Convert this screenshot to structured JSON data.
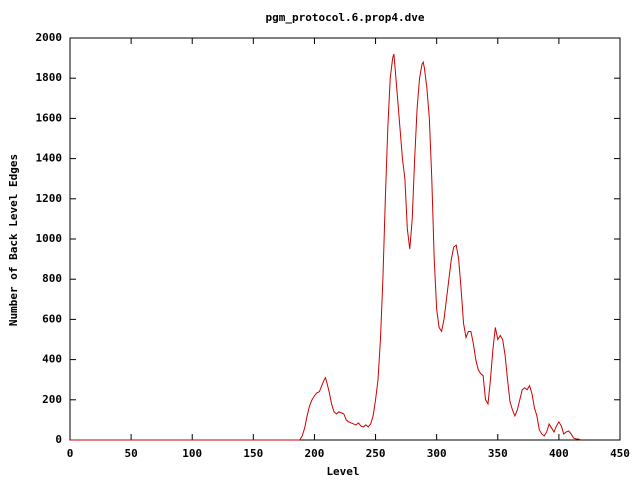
{
  "chart_data": {
    "type": "line",
    "title": "pgm_protocol.6.prop4.dve",
    "x_label": "Level",
    "y_label": "Number of Back Level Edges",
    "xlim": [
      0,
      450
    ],
    "xticks": [
      0,
      50,
      100,
      150,
      200,
      250,
      300,
      350,
      400,
      450
    ],
    "ylim": [
      0,
      2000
    ],
    "yticks": [
      0,
      200,
      400,
      600,
      800,
      1000,
      1200,
      1400,
      1600,
      1800,
      2000
    ],
    "series": [
      {
        "color": "#cc0000",
        "x": [
          0,
          188,
          190,
          192,
          194,
          196,
          198,
          200,
          202,
          204,
          206,
          208,
          209,
          210,
          212,
          214,
          216,
          218,
          220,
          222,
          224,
          226,
          228,
          230,
          232,
          234,
          236,
          238,
          240,
          242,
          244,
          246,
          248,
          250,
          252,
          254,
          256,
          258,
          260,
          262,
          264,
          265,
          266,
          268,
          270,
          272,
          274,
          276,
          278,
          280,
          282,
          284,
          286,
          288,
          289,
          290,
          292,
          294,
          296,
          298,
          300,
          302,
          304,
          306,
          308,
          310,
          312,
          314,
          316,
          318,
          320,
          322,
          324,
          326,
          328,
          330,
          332,
          334,
          336,
          338,
          340,
          342,
          344,
          346,
          348,
          350,
          352,
          354,
          356,
          358,
          360,
          362,
          364,
          366,
          368,
          370,
          372,
          374,
          376,
          378,
          380,
          382,
          384,
          386,
          388,
          390,
          392,
          394,
          396,
          398,
          400,
          402,
          404,
          406,
          408,
          410,
          412,
          414,
          416,
          418
        ],
        "values": [
          0,
          0,
          20,
          60,
          120,
          170,
          200,
          220,
          235,
          240,
          270,
          300,
          310,
          290,
          240,
          180,
          140,
          130,
          140,
          135,
          130,
          100,
          90,
          85,
          80,
          75,
          85,
          70,
          65,
          75,
          65,
          80,
          120,
          200,
          300,
          500,
          800,
          1200,
          1550,
          1800,
          1900,
          1920,
          1850,
          1700,
          1550,
          1400,
          1300,
          1050,
          950,
          1100,
          1400,
          1650,
          1800,
          1870,
          1880,
          1850,
          1750,
          1600,
          1300,
          900,
          650,
          560,
          540,
          600,
          700,
          800,
          900,
          960,
          970,
          900,
          750,
          580,
          510,
          540,
          540,
          480,
          400,
          350,
          330,
          320,
          200,
          180,
          300,
          450,
          560,
          500,
          520,
          500,
          420,
          300,
          190,
          150,
          120,
          150,
          200,
          250,
          260,
          250,
          270,
          230,
          160,
          120,
          50,
          30,
          20,
          40,
          80,
          60,
          40,
          70,
          90,
          70,
          30,
          40,
          45,
          30,
          10,
          5,
          5,
          0
        ]
      }
    ]
  }
}
